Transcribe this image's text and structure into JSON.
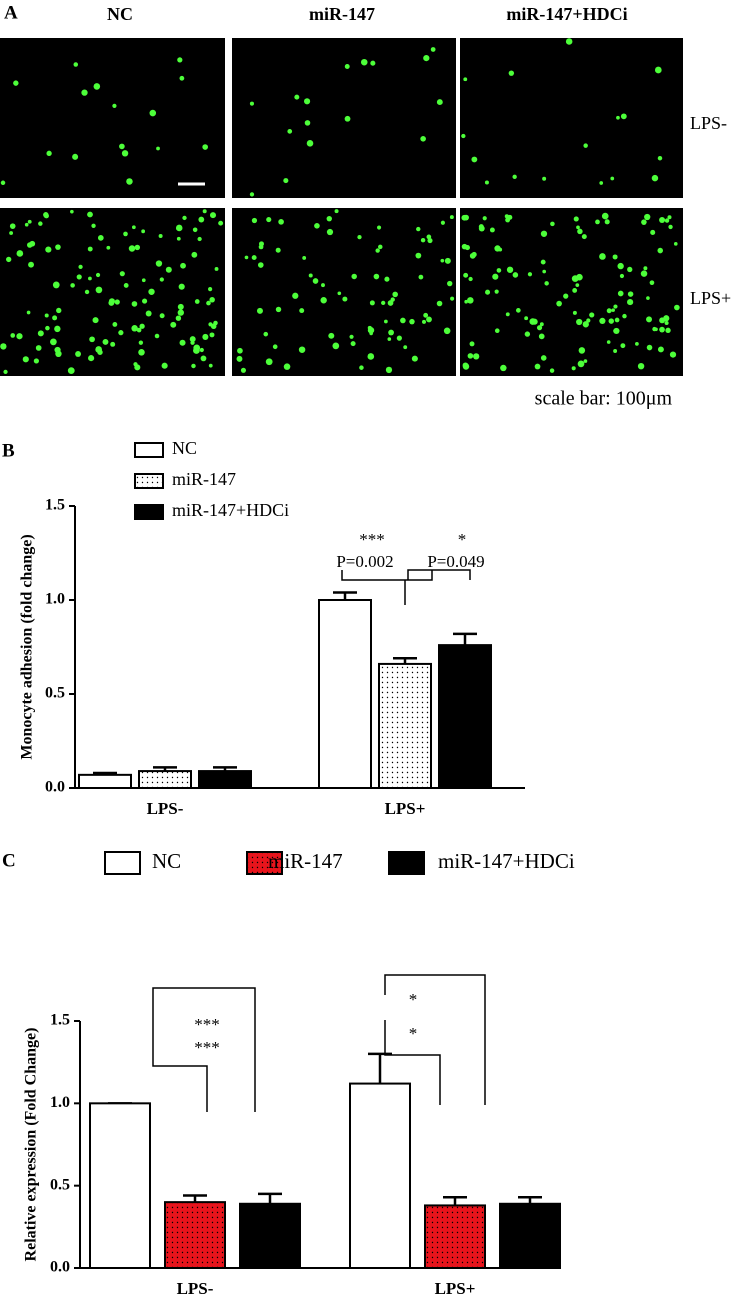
{
  "panel_a": {
    "label": "A",
    "columns": [
      "NC",
      "miR-147",
      "miR-147+HDCi"
    ],
    "rows": [
      "LPS-",
      "LPS+"
    ],
    "scale_bar": "scale bar: 100μm"
  },
  "chart_data": [
    {
      "type": "bar",
      "panel_label": "B",
      "ylabel": "Monocyte adhesion (fold change)",
      "categories": [
        "LPS-",
        "LPS+"
      ],
      "series": [
        {
          "name": "NC",
          "color": "#ffffff",
          "pattern": "none",
          "values": [
            0.07,
            1.0
          ],
          "errors": [
            0.01,
            0.04
          ]
        },
        {
          "name": "miR-147",
          "color": "#ffffff",
          "pattern": "dots",
          "values": [
            0.09,
            0.66
          ],
          "errors": [
            0.02,
            0.03
          ]
        },
        {
          "name": "miR-147+HDCi",
          "color": "#000000",
          "pattern": "none",
          "values": [
            0.09,
            0.76
          ],
          "errors": [
            0.02,
            0.06
          ]
        }
      ],
      "ylim": [
        0,
        1.5
      ],
      "yticks": [
        {
          "value": 0,
          "label": "0.0"
        },
        {
          "value": 0.5,
          "label": "0.5"
        },
        {
          "value": 1,
          "label": "1.0"
        },
        {
          "value": 1.5,
          "label": "1.5"
        }
      ],
      "legend": "top-left",
      "legend_layout": "vertical",
      "annotations": [
        "***",
        "P=0.002",
        "*",
        "P=0.049"
      ]
    },
    {
      "type": "bar",
      "panel_label": "C",
      "ylabel": "Relative expression (Fold Change)",
      "categories": [
        "LPS-",
        "LPS+"
      ],
      "series": [
        {
          "name": "NC",
          "color": "#ffffff",
          "pattern": "none",
          "values": [
            1.0,
            1.12
          ],
          "errors": [
            0,
            0.18
          ]
        },
        {
          "name": "miR-147",
          "color": "#e8141c",
          "pattern": "dots",
          "values": [
            0.4,
            0.38
          ],
          "errors": [
            0.04,
            0.05
          ]
        },
        {
          "name": "miR-147+HDCi",
          "color": "#000000",
          "pattern": "none",
          "values": [
            0.39,
            0.39
          ],
          "errors": [
            0.06,
            0.04
          ]
        }
      ],
      "ylim": [
        0,
        1.5
      ],
      "yticks": [
        {
          "value": 0,
          "label": "0.0"
        },
        {
          "value": 0.5,
          "label": "0.5"
        },
        {
          "value": 1,
          "label": "1.0"
        },
        {
          "value": 1.5,
          "label": "1.5"
        }
      ],
      "legend": "top",
      "legend_layout": "horizontal",
      "annotations": [
        "***",
        "***",
        "*",
        "*"
      ]
    }
  ]
}
